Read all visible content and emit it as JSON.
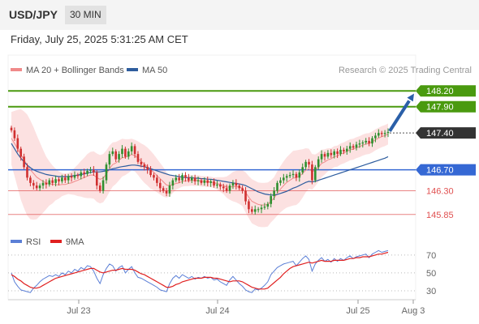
{
  "header": {
    "symbol": "USD/JPY",
    "timeframe": "30 MIN",
    "datetime": "Friday, July 25, 2025 5:31:25 AM CET"
  },
  "legend": {
    "ma20": {
      "label": "MA 20 + Bollinger Bands",
      "color": "#f08a8a"
    },
    "ma50": {
      "label": "MA 50",
      "color": "#2e5d9e"
    },
    "credit": "Research © 2025 Trading Central"
  },
  "rsi_legend": {
    "rsi": {
      "label": "RSI",
      "color": "#5b7fd6"
    },
    "ma9": {
      "label": "9MA",
      "color": "#e02020"
    }
  },
  "colors": {
    "resistance": "#4a9a0f",
    "pivot": "#3568d4",
    "support": "#e05050",
    "current": "#333333",
    "bull_candle": "#2f8f2f",
    "bear_candle": "#d03030",
    "band_fill": "#fbdcdc",
    "arrow": "#2a5fa8"
  },
  "chart_data": [
    {
      "type": "candlestick",
      "y_range": [
        145.6,
        148.45
      ],
      "x_ticks": [
        "Jul 23",
        "Jul 24",
        "Jul 25",
        "Aug 3"
      ],
      "levels": [
        {
          "label": "148.20",
          "value": 148.2,
          "kind": "resistance"
        },
        {
          "label": "147.90",
          "value": 147.9,
          "kind": "resistance"
        },
        {
          "label": "147.40",
          "value": 147.4,
          "kind": "current"
        },
        {
          "label": "146.70",
          "value": 146.7,
          "kind": "pivot"
        },
        {
          "label": "146.30",
          "value": 146.3,
          "kind": "support"
        },
        {
          "label": "145.85",
          "value": 145.85,
          "kind": "support"
        }
      ],
      "close": [
        147.45,
        147.3,
        147.1,
        146.95,
        146.75,
        146.55,
        146.45,
        146.4,
        146.35,
        146.4,
        146.45,
        146.42,
        146.5,
        146.45,
        146.52,
        146.48,
        146.55,
        146.5,
        146.58,
        146.55,
        146.6,
        146.58,
        146.65,
        146.62,
        146.68,
        146.7,
        146.65,
        146.4,
        146.3,
        146.5,
        146.8,
        147.0,
        147.05,
        146.9,
        147.0,
        147.1,
        146.95,
        147.05,
        147.15,
        147.0,
        146.85,
        146.8,
        146.75,
        146.7,
        146.6,
        146.55,
        146.45,
        146.35,
        146.3,
        146.25,
        146.4,
        146.5,
        146.55,
        146.5,
        146.6,
        146.55,
        146.5,
        146.55,
        146.48,
        146.5,
        146.45,
        146.5,
        146.45,
        146.48,
        146.4,
        146.42,
        146.38,
        146.35,
        146.3,
        146.4,
        146.45,
        146.4,
        146.35,
        146.3,
        146.1,
        145.95,
        145.9,
        145.95,
        145.95,
        145.98,
        146.0,
        146.05,
        146.2,
        146.3,
        146.45,
        146.5,
        146.55,
        146.58,
        146.6,
        146.62,
        146.55,
        146.65,
        146.75,
        146.85,
        146.8,
        146.5,
        146.75,
        146.9,
        147.0,
        146.95,
        147.02,
        146.98,
        147.05,
        147.0,
        147.08,
        147.05,
        147.1,
        147.15,
        147.12,
        147.18,
        147.2,
        147.22,
        147.25,
        147.2,
        147.3,
        147.35,
        147.4,
        147.38,
        147.4,
        147.42
      ],
      "ma20": [
        147.3,
        147.2,
        147.1,
        146.99,
        146.89,
        146.79,
        146.7,
        146.63,
        146.56,
        146.52,
        146.48,
        146.45,
        146.44,
        146.42,
        146.42,
        146.41,
        146.42,
        146.42,
        146.44,
        146.45,
        146.48,
        146.5,
        146.53,
        146.55,
        146.58,
        146.6,
        146.6,
        146.55,
        146.52,
        146.54,
        146.62,
        146.72,
        146.8,
        146.83,
        146.88,
        146.93,
        146.94,
        146.96,
        146.99,
        146.97,
        146.92,
        146.86,
        146.81,
        146.76,
        146.7,
        146.65,
        146.59,
        146.53,
        146.47,
        146.41,
        146.4,
        146.42,
        146.44,
        146.45,
        146.48,
        146.49,
        146.49,
        146.5,
        146.49,
        146.5,
        146.48,
        146.48,
        146.47,
        146.47,
        146.45,
        146.44,
        146.42,
        146.4,
        146.37,
        146.37,
        146.38,
        146.38,
        146.37,
        146.35,
        146.27,
        146.18,
        146.1,
        146.07,
        146.04,
        146.03,
        146.03,
        146.04,
        146.1,
        146.16,
        146.25,
        146.33,
        146.4,
        146.46,
        146.5,
        146.54,
        146.55,
        146.58,
        146.63,
        146.69,
        146.72,
        146.66,
        146.69,
        146.75,
        146.82,
        146.85,
        146.89,
        146.91,
        146.95,
        146.96,
        147.0,
        147.02,
        147.05,
        147.08,
        147.09,
        147.12,
        147.14,
        147.17,
        147.19,
        147.2,
        147.23,
        147.27,
        147.3,
        147.33,
        147.35,
        147.38
      ],
      "ma50": [
        147.2,
        147.1,
        147.0,
        146.92,
        146.85,
        146.79,
        146.74,
        146.7,
        146.67,
        146.65,
        146.63,
        146.61,
        146.6,
        146.59,
        146.58,
        146.57,
        146.57,
        146.57,
        146.57,
        146.58,
        146.59,
        146.6,
        146.61,
        146.62,
        146.64,
        146.65,
        146.66,
        146.66,
        146.66,
        146.67,
        146.68,
        146.7,
        146.72,
        146.73,
        146.75,
        146.76,
        146.77,
        146.78,
        146.79,
        146.79,
        146.78,
        146.77,
        146.76,
        146.74,
        146.72,
        146.7,
        146.68,
        146.66,
        146.64,
        146.62,
        146.6,
        146.59,
        146.58,
        146.57,
        146.56,
        146.55,
        146.55,
        146.55,
        146.54,
        146.54,
        146.53,
        146.53,
        146.52,
        146.52,
        146.51,
        146.5,
        146.49,
        146.48,
        146.47,
        146.46,
        146.45,
        146.44,
        146.43,
        146.42,
        146.4,
        146.37,
        146.34,
        146.31,
        146.28,
        146.26,
        146.24,
        146.23,
        146.22,
        146.22,
        146.23,
        146.25,
        146.27,
        146.29,
        146.32,
        146.35,
        146.37,
        146.4,
        146.43,
        146.46,
        146.48,
        146.47,
        146.48,
        146.5,
        146.52,
        146.54,
        146.56,
        146.58,
        146.6,
        146.62,
        146.64,
        146.66,
        146.68,
        146.7,
        146.72,
        146.74,
        146.76,
        146.78,
        146.8,
        146.82,
        146.84,
        146.86,
        146.88,
        146.9,
        146.92,
        146.95
      ],
      "band_width": [
        0.5,
        0.62,
        0.74,
        0.86,
        0.92,
        0.96,
        0.94,
        0.88,
        0.8,
        0.7,
        0.6,
        0.5,
        0.42,
        0.36,
        0.3,
        0.26,
        0.22,
        0.2,
        0.2,
        0.22,
        0.26,
        0.3,
        0.34,
        0.38,
        0.42,
        0.44,
        0.45,
        0.46,
        0.46,
        0.46,
        0.45,
        0.44,
        0.42,
        0.4,
        0.38,
        0.36,
        0.34,
        0.32,
        0.3,
        0.3,
        0.32,
        0.34,
        0.36,
        0.36,
        0.36,
        0.34,
        0.32,
        0.3,
        0.28,
        0.24,
        0.2,
        0.16,
        0.12,
        0.1,
        0.1,
        0.1,
        0.1,
        0.1,
        0.1,
        0.1,
        0.1,
        0.1,
        0.1,
        0.1,
        0.1,
        0.12,
        0.14,
        0.16,
        0.2,
        0.24,
        0.28,
        0.3,
        0.32,
        0.34,
        0.38,
        0.4,
        0.42,
        0.42,
        0.42,
        0.42,
        0.42,
        0.42,
        0.4,
        0.4,
        0.42,
        0.44,
        0.46,
        0.48,
        0.5,
        0.52,
        0.52,
        0.5,
        0.46,
        0.42,
        0.38,
        0.34,
        0.3,
        0.28,
        0.26,
        0.24,
        0.22,
        0.2,
        0.2,
        0.2,
        0.2,
        0.2,
        0.2,
        0.2,
        0.2,
        0.2,
        0.2,
        0.2,
        0.2,
        0.2,
        0.2,
        0.2,
        0.2,
        0.2,
        0.2,
        0.2
      ]
    },
    {
      "type": "line",
      "name": "RSI",
      "y_range": [
        20,
        78
      ],
      "ticks": [
        70,
        50,
        30
      ],
      "rsi": [
        50,
        40,
        35,
        31,
        30,
        29,
        28,
        33,
        36,
        40,
        43,
        45,
        47,
        46,
        48,
        46,
        50,
        48,
        52,
        50,
        54,
        52,
        56,
        54,
        58,
        57,
        52,
        44,
        38,
        48,
        55,
        60,
        58,
        52,
        56,
        58,
        50,
        54,
        57,
        50,
        45,
        44,
        42,
        40,
        38,
        36,
        34,
        31,
        30,
        29,
        38,
        44,
        47,
        44,
        48,
        46,
        44,
        46,
        43,
        45,
        44,
        46,
        44,
        45,
        42,
        43,
        40,
        38,
        36,
        42,
        46,
        42,
        38,
        35,
        31,
        29,
        28,
        32,
        31,
        33,
        36,
        40,
        48,
        52,
        56,
        58,
        60,
        61,
        62,
        63,
        58,
        62,
        66,
        69,
        65,
        52,
        60,
        64,
        67,
        63,
        65,
        62,
        66,
        63,
        66,
        64,
        67,
        69,
        66,
        68,
        69,
        70,
        71,
        67,
        71,
        73,
        75,
        73,
        74,
        75
      ],
      "ma9": [
        48,
        46,
        43,
        41,
        38,
        36,
        34,
        33,
        33,
        34,
        36,
        38,
        40,
        42,
        44,
        45,
        46,
        47,
        48,
        49,
        50,
        51,
        52,
        53,
        54,
        55,
        55,
        53,
        51,
        50,
        51,
        52,
        53,
        53,
        54,
        55,
        54,
        54,
        54,
        53,
        51,
        49,
        48,
        46,
        44,
        42,
        40,
        38,
        36,
        34,
        34,
        35,
        37,
        38,
        40,
        41,
        42,
        43,
        44,
        44,
        44,
        45,
        45,
        45,
        44,
        44,
        43,
        42,
        41,
        40,
        41,
        41,
        41,
        40,
        38,
        36,
        34,
        33,
        32,
        32,
        32,
        33,
        36,
        39,
        42,
        45,
        49,
        52,
        55,
        57,
        58,
        59,
        60,
        61,
        62,
        61,
        62,
        63,
        64,
        63,
        63,
        63,
        64,
        64,
        64,
        64,
        65,
        66,
        66,
        67,
        67,
        68,
        68,
        68,
        69,
        70,
        71,
        71,
        72,
        73
      ]
    }
  ]
}
